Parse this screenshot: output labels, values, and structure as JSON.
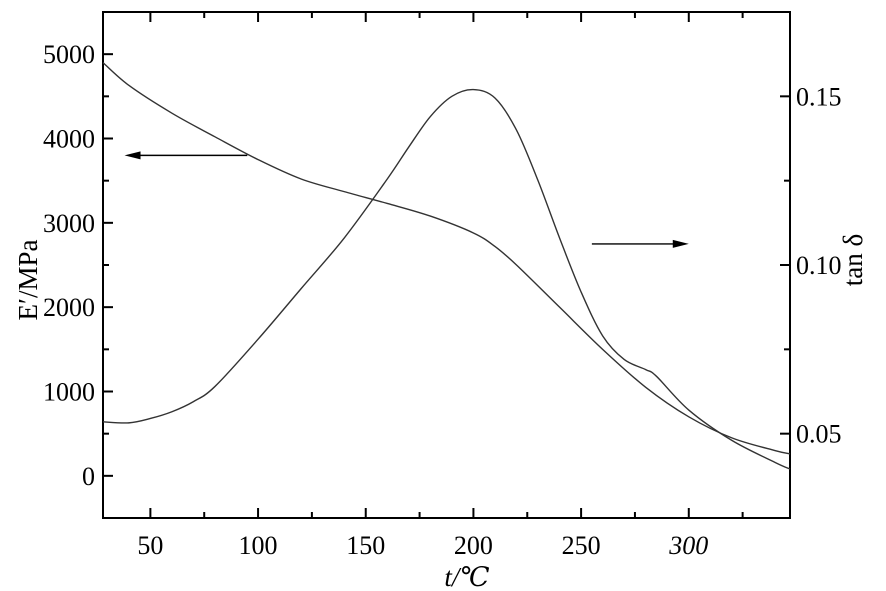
{
  "chart_data": {
    "type": "line",
    "xlabel": "t/℃",
    "ylabel_left": "E′/MPa",
    "ylabel_right": "tan δ",
    "xlim": [
      28,
      347
    ],
    "ylim_left": [
      -500,
      5500
    ],
    "ylim_right": [
      0.025,
      0.175
    ],
    "x_ticks": [
      50,
      100,
      150,
      200,
      250,
      300
    ],
    "x_tick_labels": [
      "50",
      "100",
      "150",
      "200",
      "250",
      "300"
    ],
    "y_left_ticks": [
      0,
      1000,
      2000,
      3000,
      4000,
      5000
    ],
    "y_left_tick_labels": [
      "0",
      "1000",
      "2000",
      "3000",
      "4000",
      "5000"
    ],
    "y_right_ticks": [
      0.05,
      0.1,
      0.15
    ],
    "y_right_tick_labels": [
      "0.05",
      "0.10",
      "0.15"
    ],
    "grid": false,
    "series": [
      {
        "axis": "left",
        "x": [
          28,
          40,
          60,
          80,
          100,
          120,
          140,
          160,
          180,
          200,
          210,
          220,
          240,
          260,
          280,
          300,
          320,
          340,
          347
        ],
        "y": [
          4900,
          4630,
          4300,
          4020,
          3750,
          3520,
          3370,
          3230,
          3080,
          2880,
          2720,
          2500,
          2000,
          1500,
          1050,
          700,
          450,
          300,
          260
        ]
      },
      {
        "axis": "right",
        "x": [
          28,
          40,
          50,
          60,
          70,
          80,
          100,
          120,
          140,
          160,
          170,
          180,
          190,
          200,
          210,
          220,
          230,
          240,
          250,
          260,
          270,
          280,
          285,
          300,
          320,
          340,
          347
        ],
        "y": [
          0.0535,
          0.0532,
          0.0545,
          0.0565,
          0.0595,
          0.064,
          0.078,
          0.093,
          0.108,
          0.1255,
          0.135,
          0.144,
          0.15,
          0.152,
          0.1495,
          0.14,
          0.125,
          0.108,
          0.092,
          0.079,
          0.072,
          0.069,
          0.067,
          0.057,
          0.048,
          0.0415,
          0.0395
        ]
      }
    ],
    "arrows": [
      {
        "axis": "left",
        "x_from": 95,
        "x_to": 38,
        "y": 3800
      },
      {
        "axis": "left",
        "x_from": 255,
        "x_to": 300,
        "y": 2750
      }
    ]
  }
}
